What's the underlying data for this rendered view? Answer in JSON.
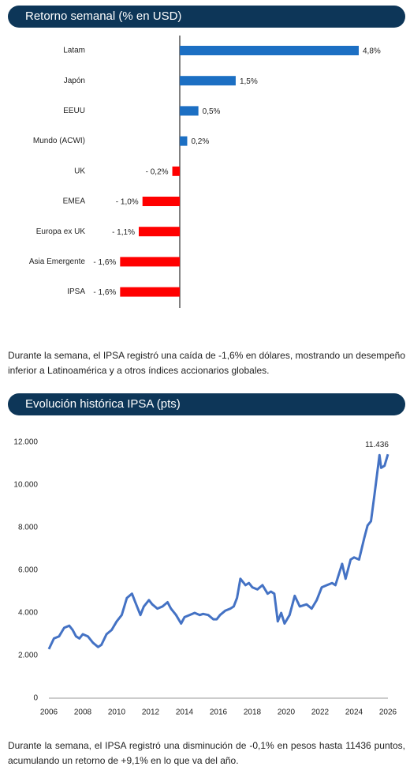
{
  "chart_data": [
    {
      "type": "hbar",
      "title": "Retorno semanal (% en USD)",
      "categories": [
        "Latam",
        "Japón",
        "EEUU",
        "Mundo (ACWI)",
        "UK",
        "EMEA",
        "Europa ex UK",
        "Asia Emergente",
        "IPSA"
      ],
      "values": [
        4.8,
        1.5,
        0.5,
        0.2,
        -0.2,
        -1.0,
        -1.1,
        -1.6,
        -1.6
      ],
      "value_labels": [
        "4,8%",
        "1,5%",
        "0,5%",
        "0,2%",
        "- 0,2%",
        "- 1,0%",
        "- 1,1%",
        "- 1,6%",
        "- 1,6%"
      ],
      "colors": [
        "#1c6fc3",
        "#1c6fc3",
        "#1c6fc3",
        "#1c6fc3",
        "#ff0000",
        "#ff0000",
        "#ff0000",
        "#ff0000",
        "#ff0000"
      ]
    },
    {
      "type": "line",
      "title": "Evolución histórica IPSA (pts)",
      "x": [
        2006.0,
        2006.3,
        2006.6,
        2006.9,
        2007.2,
        2007.4,
        2007.6,
        2007.8,
        2008.0,
        2008.3,
        2008.6,
        2008.9,
        2009.1,
        2009.4,
        2009.7,
        2010.0,
        2010.3,
        2010.6,
        2010.9,
        2011.1,
        2011.4,
        2011.6,
        2011.9,
        2012.1,
        2012.4,
        2012.7,
        2013.0,
        2013.2,
        2013.5,
        2013.8,
        2014.0,
        2014.3,
        2014.6,
        2014.9,
        2015.1,
        2015.4,
        2015.7,
        2015.9,
        2016.1,
        2016.4,
        2016.7,
        2016.9,
        2017.1,
        2017.3,
        2017.6,
        2017.8,
        2018.0,
        2018.3,
        2018.6,
        2018.9,
        2019.1,
        2019.3,
        2019.5,
        2019.7,
        2019.9,
        2020.2,
        2020.5,
        2020.8,
        2021.2,
        2021.5,
        2021.8,
        2022.1,
        2022.4,
        2022.7,
        2022.9,
        2023.3,
        2023.5,
        2023.8,
        2024.0,
        2024.3,
        2024.6,
        2024.8,
        2025.0,
        2025.2,
        2025.5,
        2025.6,
        2025.8,
        2026.0
      ],
      "values": [
        2300,
        2800,
        2900,
        3300,
        3400,
        3200,
        2900,
        2800,
        3000,
        2900,
        2600,
        2400,
        2500,
        3000,
        3200,
        3600,
        3900,
        4700,
        4900,
        4500,
        3900,
        4300,
        4600,
        4400,
        4200,
        4300,
        4500,
        4200,
        3900,
        3500,
        3800,
        3900,
        4000,
        3900,
        3950,
        3900,
        3700,
        3700,
        3900,
        4100,
        4200,
        4300,
        4700,
        5600,
        5300,
        5400,
        5200,
        5100,
        5300,
        4900,
        5000,
        4900,
        3600,
        4000,
        3500,
        3900,
        4800,
        4300,
        4400,
        4200,
        4600,
        5200,
        5300,
        5400,
        5300,
        6300,
        5600,
        6500,
        6600,
        6500,
        7500,
        8100,
        8300,
        9500,
        11400,
        10800,
        10900,
        11436
      ],
      "color": "#4472c4",
      "annotation": "11.436",
      "xlim": [
        2006,
        2026
      ],
      "xticks": [
        2006,
        2008,
        2010,
        2012,
        2014,
        2016,
        2018,
        2020,
        2022,
        2024,
        2026
      ],
      "ylim": [
        0,
        12000
      ],
      "yticks": [
        0,
        {
          "value": 2000,
          "label": "2.000"
        },
        {
          "value": 4000,
          "label": "4.000"
        },
        {
          "value": 6000,
          "label": "6.000"
        },
        {
          "value": 8000,
          "label": "8.000"
        },
        {
          "value": 10000,
          "label": "10.000"
        },
        {
          "value": 12000,
          "label": "12.000"
        }
      ]
    }
  ],
  "paragraphs": [
    "Durante la semana, el IPSA registró una caída de -1,6% en dólares, mostrando un desempeño inferior a Latinoamérica y a otros índices accionarios globales.",
    "Durante la semana, el IPSA registró una disminución de -0,1% en pesos hasta 11436 puntos, acumulando un retorno de +9,1% en lo que va del año."
  ]
}
